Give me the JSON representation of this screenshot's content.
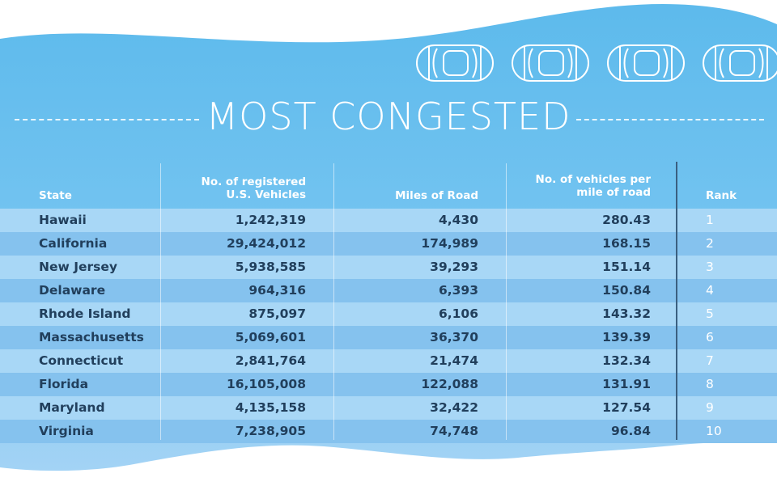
{
  "title": "MOST CONGESTED",
  "colors": {
    "sky_light": "#9fd0f3",
    "sky_dark": "#62b9ec",
    "row_light": "#a8d7f6",
    "row_dark": "#85c2ee",
    "text_dark": "#213f5c",
    "text_white": "#ffffff",
    "divider": "#3a5f80"
  },
  "decorations": {
    "car_icons": [
      "car-top-view-icon",
      "car-top-view-icon",
      "car-top-view-icon",
      "car-top-view-icon"
    ]
  },
  "table": {
    "headers": {
      "state": "State",
      "vehicles_line1": "No. of registered",
      "vehicles_line2": "U.S. Vehicles",
      "miles": "Miles of Road",
      "per_mile_line1": "No. of vehicles per",
      "per_mile_line2": "mile of road",
      "rank": "Rank"
    },
    "rows": [
      {
        "state": "Hawaii",
        "vehicles": "1,242,319",
        "miles": "4,430",
        "per_mile": "280.43",
        "rank": "1"
      },
      {
        "state": "California",
        "vehicles": "29,424,012",
        "miles": "174,989",
        "per_mile": "168.15",
        "rank": "2"
      },
      {
        "state": "New Jersey",
        "vehicles": "5,938,585",
        "miles": "39,293",
        "per_mile": "151.14",
        "rank": "3"
      },
      {
        "state": "Delaware",
        "vehicles": "964,316",
        "miles": "6,393",
        "per_mile": "150.84",
        "rank": "4"
      },
      {
        "state": "Rhode Island",
        "vehicles": "875,097",
        "miles": "6,106",
        "per_mile": "143.32",
        "rank": "5"
      },
      {
        "state": "Massachusetts",
        "vehicles": "5,069,601",
        "miles": "36,370",
        "per_mile": "139.39",
        "rank": "6"
      },
      {
        "state": "Connecticut",
        "vehicles": "2,841,764",
        "miles": "21,474",
        "per_mile": "132.34",
        "rank": "7"
      },
      {
        "state": "Florida",
        "vehicles": "16,105,008",
        "miles": "122,088",
        "per_mile": "131.91",
        "rank": "8"
      },
      {
        "state": "Maryland",
        "vehicles": "4,135,158",
        "miles": "32,422",
        "per_mile": "127.54",
        "rank": "9"
      },
      {
        "state": "Virginia",
        "vehicles": "7,238,905",
        "miles": "74,748",
        "per_mile": "96.84",
        "rank": "10"
      }
    ]
  }
}
